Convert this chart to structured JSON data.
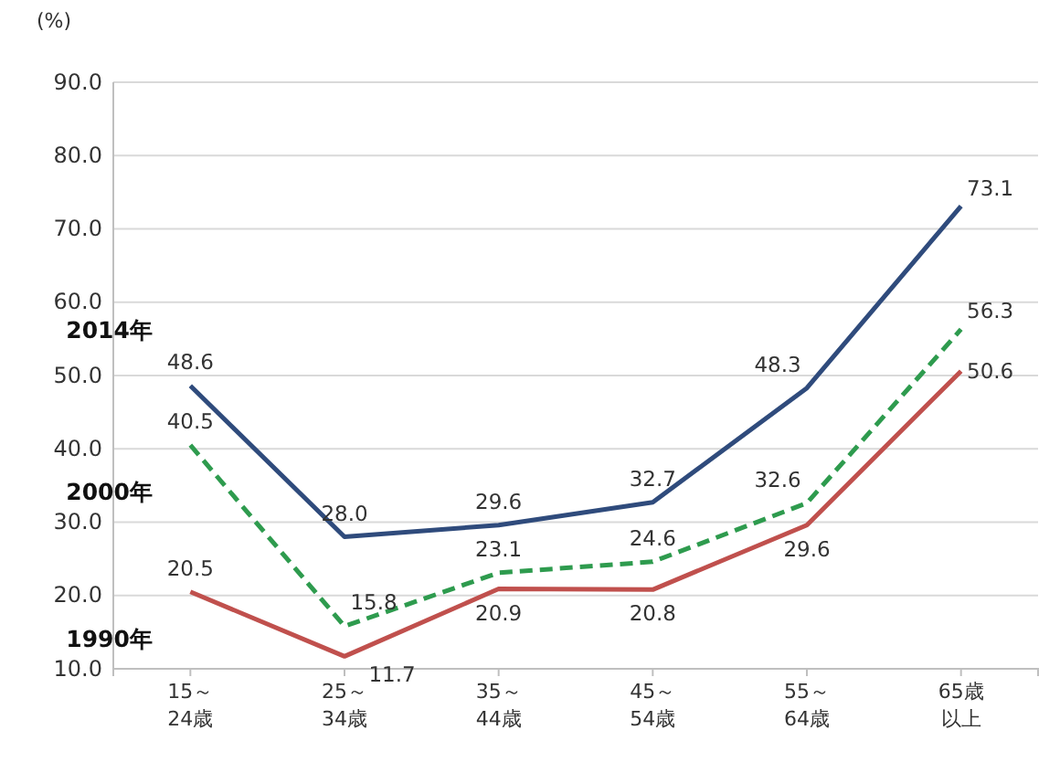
{
  "chart_data": {
    "type": "line",
    "ylabel": "(%)",
    "categories": [
      "15～24歳",
      "25～34歳",
      "35～44歳",
      "45～54歳",
      "55～64歳",
      "65歳以上"
    ],
    "series": [
      {
        "name": "2014年",
        "color": "#2f4b7c",
        "line_style": "solid",
        "values": [
          48.6,
          28.0,
          29.6,
          32.7,
          48.3,
          73.1
        ],
        "value_labels": [
          "48.6",
          "28.0",
          "29.6",
          "32.7",
          "48.3",
          "73.1"
        ]
      },
      {
        "name": "2000年",
        "color": "#2e9b4e",
        "line_style": "dashed",
        "values": [
          40.5,
          15.8,
          23.1,
          24.6,
          32.6,
          56.3
        ],
        "value_labels": [
          "40.5",
          "15.8",
          "23.1",
          "24.6",
          "32.6",
          "56.3"
        ]
      },
      {
        "name": "1990年",
        "color": "#c0504d",
        "line_style": "solid",
        "values": [
          20.5,
          11.7,
          20.9,
          20.8,
          29.6,
          50.6
        ],
        "value_labels": [
          "20.5",
          "11.7",
          "20.9",
          "20.8",
          "29.6",
          "50.6"
        ]
      }
    ],
    "ylim": [
      10,
      90
    ],
    "yticks": [
      {
        "value": 10,
        "label": "10.0"
      },
      {
        "value": 20,
        "label": "20.0"
      },
      {
        "value": 30,
        "label": "30.0"
      },
      {
        "value": 40,
        "label": "40.0"
      },
      {
        "value": 50,
        "label": "50.0"
      },
      {
        "value": 60,
        "label": "60.0"
      },
      {
        "value": 70,
        "label": "70.0"
      },
      {
        "value": 80,
        "label": "80.0"
      },
      {
        "value": 90,
        "label": "90.0"
      }
    ],
    "grid": "y",
    "marker": "none"
  }
}
